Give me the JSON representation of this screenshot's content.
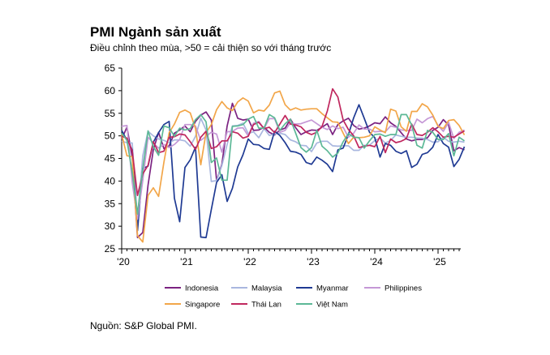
{
  "chart_data": {
    "type": "line",
    "title": "PMI Ngành sản xuất",
    "subtitle": "Điều chỉnh theo mùa, >50 = cải thiện so với tháng trước",
    "source": "Nguồn: S&P Global PMI.",
    "x_tick_labels": [
      "'20",
      "'21",
      "'22",
      "'23",
      "'24",
      "'25"
    ],
    "x_start": "2020-01",
    "ylim": [
      25,
      65
    ],
    "yticks": [
      25,
      30,
      35,
      40,
      45,
      50,
      55,
      60,
      65
    ],
    "grid": false,
    "legend_position": "bottom",
    "series": [
      {
        "name": "Indonesia",
        "color": "#7b2281",
        "values": [
          49.3,
          51.9,
          45.3,
          27.5,
          28.6,
          39.1,
          46.9,
          50.8,
          47.2,
          47.8,
          50.6,
          51.3,
          52.2,
          50.9,
          53.2,
          54.6,
          55.3,
          53.5,
          40.1,
          43.7,
          52.2,
          57.2,
          53.9,
          53.5,
          53.7,
          51.2,
          51.3,
          51.9,
          50.8,
          50.2,
          51.3,
          51.7,
          53.7,
          51.8,
          50.3,
          50.9,
          51.3,
          51.2,
          51.9,
          52.7,
          50.3,
          52.5,
          53.3,
          53.9,
          52.3,
          51.5,
          51.7,
          52.2,
          52.9,
          52.7,
          54.2,
          52.9,
          52.1,
          50.7,
          49.3,
          48.9,
          49.2,
          49.2,
          49.6,
          51.2,
          51.9,
          53.6,
          52.4,
          46.7,
          47.4,
          46.9
        ]
      },
      {
        "name": "Malaysia",
        "color": "#a9b7df",
        "values": [
          48.8,
          48.5,
          48.4,
          31.3,
          45.6,
          51.0,
          50.0,
          49.3,
          49.0,
          48.5,
          49.1,
          49.1,
          48.9,
          47.7,
          49.9,
          53.9,
          51.3,
          39.9,
          40.1,
          43.4,
          48.1,
          52.2,
          52.3,
          52.8,
          50.5,
          50.9,
          49.6,
          51.6,
          50.1,
          50.4,
          50.6,
          50.3,
          49.1,
          48.7,
          47.9,
          47.8,
          46.5,
          48.4,
          48.8,
          48.8,
          47.8,
          47.7,
          47.8,
          47.8,
          46.8,
          46.8,
          47.9,
          47.9,
          49.0,
          49.5,
          48.4,
          49.0,
          50.2,
          49.9,
          49.7,
          49.7,
          49.5,
          49.5,
          49.2,
          48.6,
          48.7,
          49.7,
          48.8,
          48.6,
          48.8,
          48.6
        ]
      },
      {
        "name": "Myanmar",
        "color": "#1f3a93",
        "values": [
          51.2,
          49.0,
          46.9,
          29.0,
          42.8,
          43.3,
          48.6,
          50.7,
          52.5,
          53.2,
          36.2,
          31.0,
          43.0,
          44.7,
          47.5,
          27.6,
          27.5,
          33.7,
          39.7,
          41.4,
          35.5,
          38.4,
          43.1,
          45.8,
          49.3,
          48.1,
          48.0,
          47.2,
          47.0,
          51.0,
          50.1,
          48.5,
          46.6,
          46.4,
          45.9,
          44.1,
          43.7,
          45.3,
          44.6,
          43.7,
          42.1,
          46.9,
          47.3,
          50.3,
          54.0,
          56.9,
          53.9,
          50.8,
          49.6,
          45.3,
          48.3,
          47.9,
          46.6,
          46.1,
          46.7,
          43.0,
          43.7,
          45.9,
          46.3,
          47.5,
          50.3,
          48.3,
          47.5,
          43.2,
          44.8,
          47.6
        ]
      },
      {
        "name": "Philippines",
        "color": "#c598d6",
        "values": [
          52.1,
          52.3,
          39.7,
          31.6,
          40.1,
          49.7,
          48.4,
          47.3,
          48.1,
          47.4,
          48.1,
          49.2,
          52.5,
          52.5,
          52.2,
          49.0,
          49.9,
          50.8,
          50.4,
          46.4,
          50.9,
          51.0,
          51.7,
          51.8,
          50.0,
          52.8,
          53.2,
          51.6,
          53.8,
          53.8,
          50.8,
          51.2,
          52.9,
          52.6,
          52.7,
          53.1,
          53.5,
          52.7,
          51.9,
          51.4,
          52.2,
          51.6,
          51.9,
          49.7,
          50.6,
          52.4,
          51.5,
          51.5,
          50.9,
          51.0,
          50.9,
          52.2,
          51.9,
          51.3,
          51.2,
          51.2,
          53.7,
          52.9,
          53.8,
          54.3,
          52.3,
          51.0,
          53.0,
          49.4,
          50.8,
          51.3
        ]
      },
      {
        "name": "Singapore",
        "color": "#f2a649",
        "values": [
          50.3,
          45.6,
          45.4,
          27.9,
          26.5,
          36.8,
          38.5,
          36.6,
          44.1,
          50.7,
          52.6,
          55.2,
          55.7,
          55.1,
          51.6,
          43.6,
          50.7,
          52.5,
          55.8,
          57.6,
          56.2,
          55.6,
          57.5,
          58.4,
          57.7,
          55.1,
          55.7,
          55.5,
          56.8,
          59.5,
          59.9,
          56.9,
          55.7,
          56.2,
          55.7,
          55.9,
          56.0,
          56.0,
          54.9,
          54.0,
          53.1,
          53.0,
          50.6,
          48.3,
          49.7,
          49.6,
          49.7,
          50.0,
          52.0,
          51.3,
          50.7,
          55.9,
          55.5,
          52.0,
          51.0,
          55.4,
          55.4,
          57.1,
          56.4,
          54.6,
          52.1,
          51.6,
          53.4,
          53.6,
          52.3,
          50.2
        ]
      },
      {
        "name": "Thái Lan",
        "color": "#c0275e",
        "values": [
          49.9,
          49.5,
          46.7,
          36.8,
          41.6,
          43.5,
          48.7,
          46.3,
          46.6,
          49.7,
          49.8,
          50.4,
          50.2,
          48.7,
          47.0,
          49.7,
          51.0,
          47.2,
          47.6,
          48.9,
          48.9,
          50.9,
          50.6,
          49.5,
          49.9,
          52.5,
          53.0,
          51.6,
          51.9,
          50.7,
          52.6,
          54.5,
          52.6,
          52.4,
          52.0,
          50.8,
          50.3,
          50.8,
          52.1,
          55.5,
          60.4,
          58.6,
          53.5,
          51.4,
          50.0,
          47.4,
          47.7,
          47.9,
          47.6,
          49.9,
          46.3,
          49.3,
          48.5,
          48.8,
          49.4,
          52.6,
          50.3,
          50.1,
          50.8,
          51.8,
          50.9,
          49.7,
          49.9,
          49.7,
          50.4,
          51.1
        ]
      },
      {
        "name": "Việt Nam",
        "color": "#5cb896",
        "values": [
          50.6,
          49.0,
          41.9,
          32.7,
          42.7,
          51.1,
          47.6,
          45.7,
          52.2,
          51.8,
          49.9,
          51.7,
          51.3,
          51.6,
          53.6,
          54.7,
          53.1,
          44.1,
          45.1,
          40.2,
          40.2,
          52.1,
          52.2,
          52.5,
          53.7,
          54.3,
          51.7,
          51.7,
          54.7,
          54.0,
          51.2,
          52.7,
          53.7,
          50.6,
          47.4,
          46.4,
          47.4,
          51.2,
          47.7,
          46.7,
          45.3,
          46.2,
          48.7,
          50.5,
          49.7,
          49.6,
          47.3,
          48.9,
          50.3,
          50.4,
          49.9,
          50.3,
          50.3,
          54.7,
          54.7,
          52.4,
          47.9,
          47.3,
          51.2,
          50.8,
          49.2,
          49.2,
          50.5,
          45.6,
          49.7,
          48.9
        ]
      }
    ]
  }
}
